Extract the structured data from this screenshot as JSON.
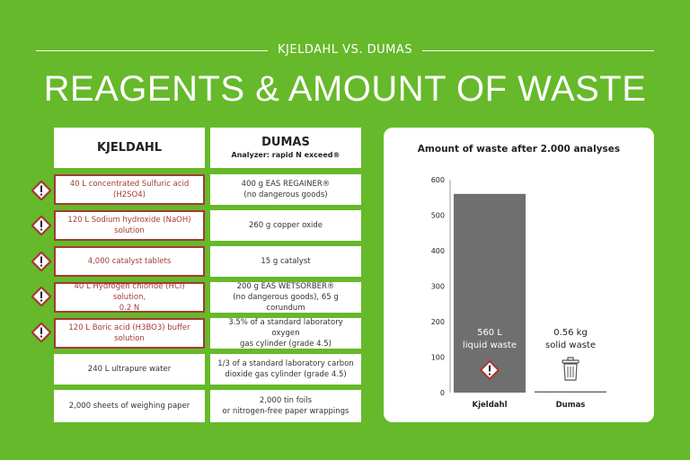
{
  "header": {
    "subtitle": "KJELDAHL VS. DUMAS",
    "title": "REAGENTS & AMOUNT OF WASTE"
  },
  "table": {
    "kjeldahl_header": "KJELDAHL",
    "dumas_header": "DUMAS",
    "dumas_subheader": "Analyzer: rapid N exceed®",
    "rows": [
      {
        "kjeldahl": "40 L concentrated Sulfuric acid (H2SO4)",
        "dumas_line1": "400 g EAS REGAINER®",
        "dumas_line2": "(no dangerous goods)",
        "hazard": true
      },
      {
        "kjeldahl": "120 L Sodium hydroxide (NaOH) solution",
        "dumas_line1": "260 g copper oxide",
        "dumas_line2": "",
        "hazard": true
      },
      {
        "kjeldahl": "4,000 catalyst tablets",
        "dumas_line1": "15 g catalyst",
        "dumas_line2": "",
        "hazard": true
      },
      {
        "kjeldahl_line1": "40 L Hydrogen chloride (HCl) solution,",
        "kjeldahl_line2": "0.2 N",
        "dumas_line1": "200 g EAS WETSORBER®",
        "dumas_line2": "(no dangerous goods), 65 g corundum",
        "hazard": true
      },
      {
        "kjeldahl": "120 L Boric acid (H3BO3) buffer solution",
        "dumas_line1": "3.5% of a standard laboratory oxygen",
        "dumas_line2": "gas cylinder (grade 4.5)",
        "hazard": true
      },
      {
        "kjeldahl": "240 L ultrapure water",
        "dumas_line1": "1/3 of a standard laboratory carbon",
        "dumas_line2": "dioxide gas cylinder (grade 4.5)",
        "hazard": false
      },
      {
        "kjeldahl": "2,000 sheets of weighing paper",
        "dumas_line1": "2,000 tin foils",
        "dumas_line2": "or nitrogen-free paper wrappings",
        "hazard": false
      }
    ]
  },
  "colors": {
    "background": "#66b92a",
    "hazard_red": "#a33b34",
    "bar_gray": "#6f6f6f"
  },
  "chart_data": {
    "type": "bar",
    "title": "Amount of waste after 2.000 analyses",
    "categories": [
      "Kjeldahl",
      "Dumas"
    ],
    "values": [
      560,
      0.56
    ],
    "ylim": [
      0,
      600
    ],
    "yticks": [
      0,
      100,
      200,
      300,
      400,
      500,
      600
    ],
    "ytick_labels": [
      "0",
      "100",
      "200",
      "300",
      "400",
      "500",
      "600"
    ],
    "grid": false,
    "xlabel": "",
    "ylabel": "",
    "bar_labels": [
      {
        "line1": "560 L",
        "line2": "liquid waste",
        "icon": "hazard-icon"
      },
      {
        "line1": "0.56 kg",
        "line2": "solid waste",
        "icon": "trash-bin-icon"
      }
    ]
  }
}
